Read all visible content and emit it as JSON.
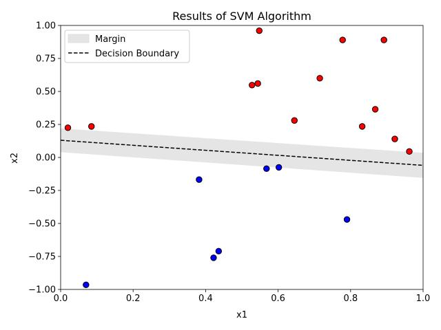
{
  "chart_data": {
    "type": "scatter",
    "title": "Results of SVM Algorithm",
    "xlabel": "x1",
    "ylabel": "x2",
    "xlim": [
      0.0,
      1.0
    ],
    "ylim": [
      -1.0,
      1.0
    ],
    "x_ticks": [
      0.0,
      0.2,
      0.4,
      0.6,
      0.8,
      1.0
    ],
    "x_tick_labels": [
      "0.0",
      "0.2",
      "0.4",
      "0.6",
      "0.8",
      "1.0"
    ],
    "y_ticks": [
      -1.0,
      -0.75,
      -0.5,
      -0.25,
      0.0,
      0.25,
      0.5,
      0.75,
      1.0
    ],
    "y_tick_labels": [
      "−1.00",
      "−0.75",
      "−0.50",
      "−0.25",
      "0.00",
      "0.25",
      "0.50",
      "0.75",
      "1.00"
    ],
    "grid": false,
    "legend_position": "top-left",
    "decision_boundary": {
      "name": "Decision Boundary",
      "x": [
        0.0,
        1.0
      ],
      "y": [
        0.13,
        -0.06
      ],
      "color": "#000000",
      "style": "dashed"
    },
    "margin": {
      "name": "Margin",
      "x": [
        0.0,
        1.0
      ],
      "upper": [
        0.22,
        0.035
      ],
      "lower": [
        0.04,
        -0.155
      ],
      "color": "#e5e5e5"
    },
    "series": [
      {
        "color": "#ff0000",
        "edge_color": "#000000",
        "points": [
          {
            "x": 0.02,
            "y": 0.225
          },
          {
            "x": 0.085,
            "y": 0.235
          },
          {
            "x": 0.528,
            "y": 0.548
          },
          {
            "x": 0.544,
            "y": 0.56
          },
          {
            "x": 0.548,
            "y": 0.96
          },
          {
            "x": 0.645,
            "y": 0.28
          },
          {
            "x": 0.715,
            "y": 0.6
          },
          {
            "x": 0.778,
            "y": 0.89
          },
          {
            "x": 0.832,
            "y": 0.235
          },
          {
            "x": 0.868,
            "y": 0.365
          },
          {
            "x": 0.892,
            "y": 0.89
          },
          {
            "x": 0.922,
            "y": 0.14
          },
          {
            "x": 0.962,
            "y": 0.045
          }
        ]
      },
      {
        "color": "#0000ff",
        "edge_color": "#000000",
        "points": [
          {
            "x": 0.07,
            "y": -0.965
          },
          {
            "x": 0.382,
            "y": -0.168
          },
          {
            "x": 0.422,
            "y": -0.76
          },
          {
            "x": 0.436,
            "y": -0.71
          },
          {
            "x": 0.568,
            "y": -0.085
          },
          {
            "x": 0.602,
            "y": -0.075
          },
          {
            "x": 0.79,
            "y": -0.47
          }
        ]
      }
    ]
  }
}
